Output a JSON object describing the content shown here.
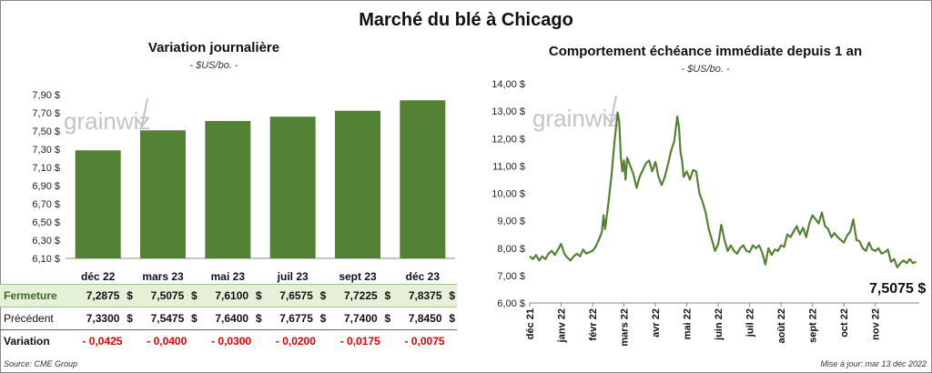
{
  "title": "Marché du blé à Chicago",
  "left": {
    "title": "Variation journalière",
    "unit": "- $US/bo. -"
  },
  "right": {
    "title": "Comportement échéance immédiate depuis 1 an",
    "unit": "- $US/bo. -",
    "last_value_label": "7,5075 $"
  },
  "watermark": "grainwiz",
  "table": {
    "currency": "$",
    "rows": [
      {
        "label": "Fermeture",
        "values": [
          "7,2875",
          "7,5075",
          "7,6100",
          "7,6575",
          "7,7225",
          "7,8375"
        ]
      },
      {
        "label": "Précédent",
        "values": [
          "7,3300",
          "7,5475",
          "7,6400",
          "7,6775",
          "7,7400",
          "7,8450"
        ]
      },
      {
        "label": "Variation",
        "values": [
          "- 0,0425",
          "- 0,0400",
          "- 0,0300",
          "- 0,0200",
          "- 0,0175",
          "- 0,0075"
        ]
      }
    ]
  },
  "footer": {
    "source": "Source: CME Group",
    "updated": "Mise à jour: mar 13 déc 2022"
  },
  "colors": {
    "bar": "#548235",
    "line": "#548235",
    "fermeture_bg": "#e4f0d8",
    "negative": "#e00000"
  },
  "chart_data": [
    {
      "type": "bar",
      "title": "Variation journalière",
      "categories": [
        "déc 22",
        "mars 23",
        "mai 23",
        "juil 23",
        "sept 23",
        "déc 23"
      ],
      "values": [
        7.2875,
        7.5075,
        7.61,
        7.6575,
        7.7225,
        7.8375
      ],
      "ylim": [
        6.1,
        7.9
      ],
      "yticks": [
        "6,10 $",
        "6,30 $",
        "6,50 $",
        "6,70 $",
        "6,90 $",
        "7,10 $",
        "7,30 $",
        "7,50 $",
        "7,70 $",
        "7,90 $"
      ],
      "ytick_values": [
        6.1,
        6.3,
        6.5,
        6.7,
        6.9,
        7.1,
        7.3,
        7.5,
        7.7,
        7.9
      ],
      "grid": false
    },
    {
      "type": "line",
      "title": "Comportement échéance immédiate depuis 1 an",
      "ylim": [
        6.0,
        14.0
      ],
      "yticks": [
        "6,00 $",
        "7,00 $",
        "8,00 $",
        "9,00 $",
        "10,00 $",
        "11,00 $",
        "12,00 $",
        "13,00 $",
        "14,00 $"
      ],
      "ytick_values": [
        6,
        7,
        8,
        9,
        10,
        11,
        12,
        13,
        14
      ],
      "x_domain": [
        0,
        12.4
      ],
      "xticks": [
        "déc 21",
        "janv 22",
        "févr 22",
        "mars 22",
        "avr 22",
        "mai 22",
        "juin 22",
        "juil 22",
        "août 22",
        "sept 22",
        "oct 22",
        "nov 22"
      ],
      "xtick_values": [
        0,
        1,
        2,
        3,
        4,
        5,
        6,
        7,
        8,
        9,
        10,
        11
      ],
      "series": [
        {
          "x": [
            0,
            0.1,
            0.2,
            0.3,
            0.4,
            0.5,
            0.6,
            0.7,
            0.8,
            0.9,
            1.0,
            1.1,
            1.2,
            1.3,
            1.4,
            1.5,
            1.6,
            1.7,
            1.8,
            1.9,
            2.0,
            2.1,
            2.2,
            2.3,
            2.35,
            2.4,
            2.5,
            2.6,
            2.7,
            2.8,
            2.85,
            2.9,
            2.95,
            3.0,
            3.05,
            3.1,
            3.2,
            3.3,
            3.4,
            3.5,
            3.6,
            3.7,
            3.8,
            3.9,
            4.0,
            4.1,
            4.2,
            4.3,
            4.4,
            4.5,
            4.6,
            4.7,
            4.75,
            4.8,
            4.85,
            4.9,
            5.0,
            5.1,
            5.2,
            5.3,
            5.4,
            5.5,
            5.6,
            5.7,
            5.8,
            5.9,
            6.0,
            6.1,
            6.2,
            6.3,
            6.4,
            6.5,
            6.6,
            6.7,
            6.8,
            6.9,
            7.0,
            7.1,
            7.2,
            7.3,
            7.4,
            7.5,
            7.6,
            7.7,
            7.8,
            7.9,
            8.0,
            8.1,
            8.2,
            8.3,
            8.4,
            8.5,
            8.6,
            8.7,
            8.8,
            8.9,
            9.0,
            9.1,
            9.2,
            9.3,
            9.4,
            9.5,
            9.6,
            9.7,
            9.8,
            9.9,
            10.0,
            10.1,
            10.2,
            10.3,
            10.4,
            10.5,
            10.6,
            10.7,
            10.8,
            10.9,
            11.0,
            11.1,
            11.2,
            11.3,
            11.4,
            11.5,
            11.6,
            11.7,
            11.8,
            11.9,
            12.0,
            12.1,
            12.2,
            12.3
          ],
          "y": [
            7.7,
            7.6,
            7.75,
            7.55,
            7.7,
            7.6,
            7.8,
            7.9,
            7.75,
            7.95,
            8.15,
            7.8,
            7.65,
            7.55,
            7.7,
            7.8,
            7.7,
            7.95,
            7.8,
            7.85,
            7.9,
            8.05,
            8.3,
            8.6,
            9.2,
            8.7,
            9.6,
            10.6,
            11.9,
            12.95,
            12.6,
            11.3,
            10.8,
            11.2,
            10.5,
            11.3,
            11.0,
            10.7,
            10.2,
            10.6,
            10.85,
            11.1,
            11.2,
            10.8,
            11.15,
            10.6,
            10.3,
            10.6,
            11.05,
            11.55,
            11.9,
            12.8,
            12.4,
            11.5,
            11.2,
            10.6,
            10.8,
            10.5,
            10.85,
            10.8,
            10.0,
            9.7,
            9.3,
            8.7,
            8.3,
            7.9,
            8.15,
            8.85,
            8.3,
            7.9,
            8.1,
            7.9,
            7.8,
            8.0,
            8.1,
            7.9,
            7.85,
            8.1,
            8.0,
            8.1,
            7.85,
            7.4,
            8.0,
            7.75,
            7.95,
            7.9,
            8.1,
            8.05,
            8.5,
            8.4,
            8.6,
            8.8,
            8.5,
            8.75,
            8.4,
            8.9,
            9.2,
            9.05,
            8.9,
            9.3,
            8.8,
            8.7,
            8.4,
            8.55,
            8.4,
            8.3,
            8.2,
            8.45,
            8.6,
            9.05,
            8.3,
            8.25,
            8.0,
            7.9,
            8.2,
            7.95,
            7.9,
            8.0,
            7.8,
            7.85,
            7.95,
            7.5,
            7.6,
            7.3,
            7.45,
            7.55,
            7.45,
            7.6,
            7.45,
            7.5075
          ]
        }
      ]
    }
  ]
}
